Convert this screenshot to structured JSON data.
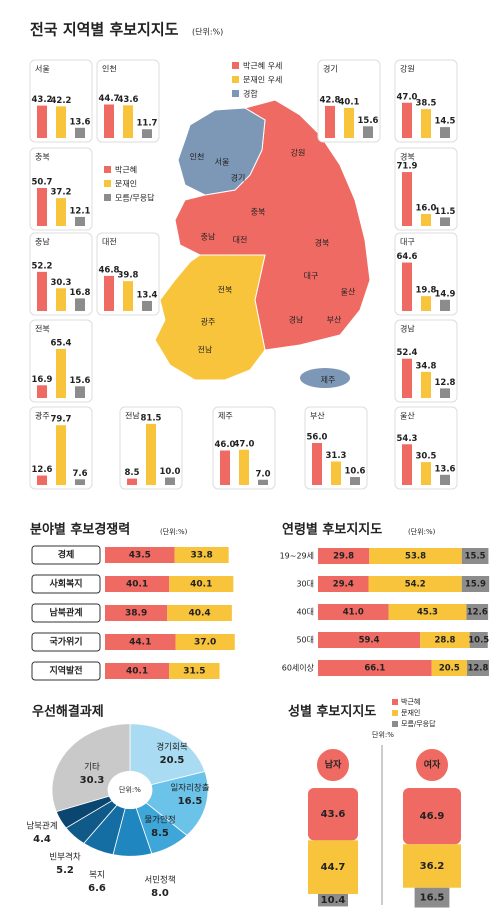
{
  "regional": {
    "title": "전국 지역별 후보지지도",
    "unit": "(단위:%)",
    "map_legend": [
      {
        "label": "박근혜 우세",
        "color": "#ef6a62"
      },
      {
        "label": "문재인 우세",
        "color": "#f8c43c"
      },
      {
        "label": "경합",
        "color": "#7d97b6"
      }
    ],
    "series": [
      {
        "name": "박근혜",
        "color": "#ef6a62"
      },
      {
        "name": "문재인",
        "color": "#f8c43c"
      },
      {
        "name": "모름/무응답",
        "color": "#8c8c8c"
      }
    ],
    "regions": [
      {
        "name": "서울",
        "values": [
          43.2,
          42.2,
          13.6
        ]
      },
      {
        "name": "인천",
        "values": [
          44.7,
          43.6,
          11.7
        ]
      },
      {
        "name": "경기",
        "values": [
          42.8,
          40.1,
          15.6
        ]
      },
      {
        "name": "강원",
        "values": [
          47,
          38.5,
          14.5
        ],
        "value_labels": [
          "47.0",
          "38.5",
          "14.5"
        ]
      },
      {
        "name": "충북",
        "values": [
          50.7,
          37.2,
          12.1
        ]
      },
      {
        "name": "경북",
        "values": [
          71.9,
          16,
          11.5
        ],
        "value_labels": [
          "71.9",
          "16.0",
          "11.5"
        ]
      },
      {
        "name": "충남",
        "values": [
          52.2,
          30.3,
          16.8
        ]
      },
      {
        "name": "대전",
        "values": [
          46.8,
          39.8,
          13.4
        ]
      },
      {
        "name": "대구",
        "values": [
          64.6,
          19.8,
          14.9
        ]
      },
      {
        "name": "전북",
        "values": [
          16.9,
          65.4,
          15.6
        ]
      },
      {
        "name": "경남",
        "values": [
          52.4,
          34.8,
          12.8
        ]
      },
      {
        "name": "광주",
        "values": [
          12.6,
          79.7,
          7.6
        ]
      },
      {
        "name": "전남",
        "values": [
          8.5,
          81.5,
          10
        ],
        "value_labels": [
          "8.5",
          "81.5",
          "10.0"
        ]
      },
      {
        "name": "제주",
        "values": [
          46,
          47,
          7
        ],
        "value_labels": [
          "46.0",
          "47.0",
          "7.0"
        ]
      },
      {
        "name": "부산",
        "values": [
          56,
          31.3,
          10.6
        ],
        "value_labels": [
          "56.0",
          "31.3",
          "10.6"
        ]
      },
      {
        "name": "울산",
        "values": [
          54.3,
          30.5,
          13.6
        ]
      }
    ]
  },
  "map_labels": [
    "인천",
    "서울",
    "경기",
    "강원",
    "충북",
    "충남",
    "대전",
    "경북",
    "대구",
    "전북",
    "울산",
    "광주",
    "경남",
    "부산",
    "전남",
    "제주"
  ],
  "field": {
    "title": "분야별 후보경쟁력",
    "unit": "(단위:%)",
    "categories": [
      "경제",
      "사회복지",
      "남북관계",
      "국가위기",
      "지역발전"
    ],
    "series": [
      {
        "values": [
          43.5,
          40.1,
          38.9,
          44.1,
          40.1
        ]
      },
      {
        "values": [
          33.8,
          40.1,
          40.4,
          37,
          31.5
        ],
        "value_labels": [
          "33.8",
          "40.1",
          "40.4",
          "37.0",
          "31.5"
        ]
      }
    ]
  },
  "age": {
    "title": "연령별 후보지지도",
    "unit": "(단위:%)",
    "categories": [
      "19~29세",
      "30대",
      "40대",
      "50대",
      "60세이상"
    ],
    "series": [
      {
        "values": [
          29.8,
          29.4,
          41,
          59.4,
          66.1
        ],
        "value_labels": [
          "29.8",
          "29.4",
          "41.0",
          "59.4",
          "66.1"
        ]
      },
      {
        "values": [
          53.8,
          54.2,
          45.3,
          28.8,
          20.5
        ]
      },
      {
        "values": [
          15.5,
          15.9,
          12.6,
          10.5,
          12.8
        ]
      }
    ]
  },
  "tasks": {
    "title": "우선해결과제",
    "unit": "단위:%",
    "categories": [
      "경기회복",
      "일자리창출",
      "물가안정",
      "서민정책",
      "복지",
      "빈부격차",
      "남북관계",
      "기타"
    ],
    "values": [
      20.5,
      16.5,
      8.5,
      8,
      6.6,
      5.2,
      4.4,
      30.3
    ],
    "value_labels": [
      "20.5",
      "16.5",
      "8.5",
      "8.0",
      "6.6",
      "5.2",
      "4.4",
      "30.3"
    ],
    "colors": [
      "#a9dcf2",
      "#6cc3ea",
      "#3ea6d8",
      "#1f86bf",
      "#156ea3",
      "#0f5a88",
      "#0b4670",
      "#c9c9c9"
    ]
  },
  "gender": {
    "title": "성별 후보지지도",
    "unit": "단위:%",
    "categories": [
      "남자",
      "여자"
    ],
    "series": [
      {
        "values": [
          43.6,
          46.9
        ]
      },
      {
        "values": [
          44.7,
          36.2
        ]
      },
      {
        "values": [
          10.4,
          16.5
        ]
      }
    ]
  }
}
